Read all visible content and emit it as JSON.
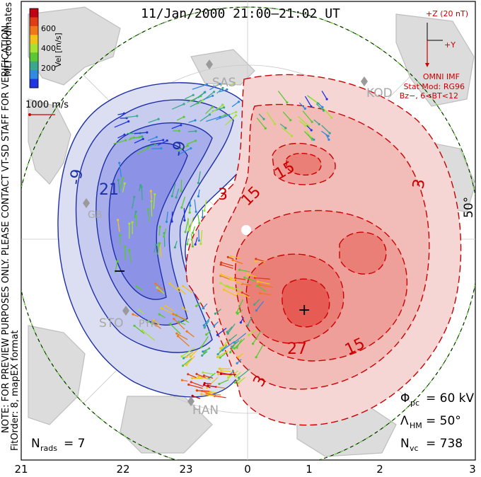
{
  "chart_data": {
    "type": "contour-map",
    "title": "11/Jan/2000 21:00–21:02 UT",
    "coordinates_label": "MLT coordinates",
    "colorbar": {
      "label": "Vel [m/s]",
      "ticks": [
        200,
        400,
        600
      ],
      "range": [
        0,
        800
      ],
      "colors": [
        "#1f35e0",
        "#2f8ae0",
        "#3aa88a",
        "#5ac832",
        "#a6e232",
        "#f2c218",
        "#f07818",
        "#e03a16",
        "#c00014"
      ]
    },
    "vector_scale": "1000 m/s",
    "imf": {
      "clock_z_label": "+Z (20 nT)",
      "clock_y_label": "+Y",
      "source": "OMNI IMF",
      "stat_mod": "Stat Mod: RG96",
      "condition": "Bz−, 6<BT<12"
    },
    "x_ticks": [
      "21",
      "22",
      "23",
      "0",
      "1",
      "2",
      "3"
    ],
    "latitude_label": "50°",
    "station_labels": [
      "SAS",
      "KOD",
      "STO",
      "PYK",
      "HAN",
      "GB"
    ],
    "contour_labels": {
      "negative": [
        "-9",
        "-9",
        "21"
      ],
      "positive": [
        "3",
        "15",
        "15",
        "27",
        "15",
        "3",
        "3"
      ]
    },
    "extrema_markers": [
      "−",
      "+"
    ],
    "stats": {
      "phi_pc_symbol": "Φ",
      "phi_pc_sub": "pc",
      "phi_pc_value": "= 60 kV",
      "lambda_hm_symbol": "Λ",
      "lambda_hm_sub": "HM",
      "lambda_hm_value": "= 50°",
      "n_vc_symbol": "N",
      "n_vc_sub": "vc",
      "n_vc_value": "= 738",
      "n_rads_symbol": "N",
      "n_rads_sub": "rads",
      "n_rads_value": "= 7"
    },
    "side_notes": {
      "note": "NOTE: FOR PREVIEW PURPOSES ONLY. PLEASE CONTACT VT-SD STAFF FOR VERIFICATION.",
      "fit": "FitOrder: 8, mapEX format"
    }
  }
}
